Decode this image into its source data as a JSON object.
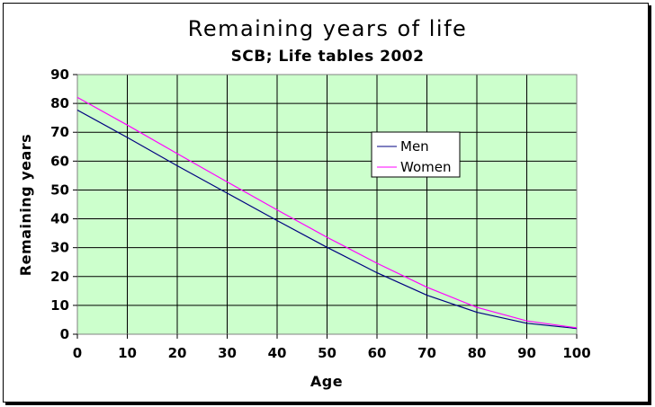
{
  "chart_data": {
    "type": "line",
    "title": "Remaining years of life",
    "subtitle": "SCB; Life tables 2002",
    "xlabel": "Age",
    "ylabel": "Remaining years",
    "xlim": [
      0,
      100
    ],
    "ylim": [
      0,
      90
    ],
    "x_ticks": [
      "0",
      "10",
      "20",
      "30",
      "40",
      "50",
      "60",
      "70",
      "80",
      "90",
      "100"
    ],
    "y_ticks": [
      "0",
      "10",
      "20",
      "30",
      "40",
      "50",
      "60",
      "70",
      "80",
      "90"
    ],
    "grid": true,
    "legend_position": "upper-right",
    "plot_background": "#ccffcc",
    "x": [
      0,
      10,
      20,
      30,
      40,
      50,
      60,
      70,
      80,
      90,
      100
    ],
    "series": [
      {
        "name": "Men",
        "color": "#000080",
        "values": [
          77.7,
          68.2,
          58.4,
          48.9,
          39.4,
          30.1,
          21.3,
          13.5,
          7.6,
          3.8,
          2.0
        ]
      },
      {
        "name": "Women",
        "color": "#ff00ff",
        "values": [
          82.1,
          72.5,
          62.6,
          52.8,
          43.1,
          33.6,
          24.6,
          16.3,
          9.3,
          4.6,
          2.2
        ]
      }
    ]
  }
}
